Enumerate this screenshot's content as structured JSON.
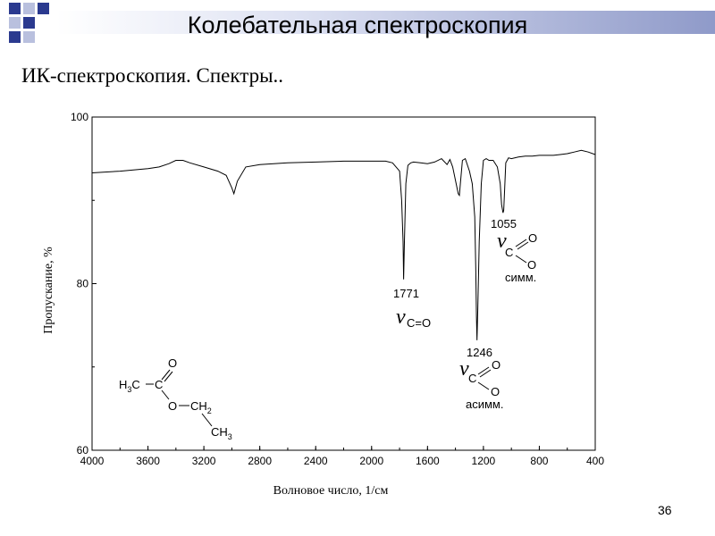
{
  "header": {
    "title": "Колебательная спектроскопия",
    "accent_color": "#2b3a8f"
  },
  "subtitle": "ИК-спектроскопия. Спектры..",
  "page_number": "36",
  "chart_data": {
    "type": "line",
    "xlabel": "Волновое число, 1/см",
    "ylabel": "Пропускание, %",
    "xlim": [
      4000,
      400
    ],
    "ylim": [
      60,
      100
    ],
    "x_ticks": [
      "4000",
      "3600",
      "3200",
      "2800",
      "2400",
      "2000",
      "1600",
      "1200",
      "800",
      "400"
    ],
    "y_ticks": [
      "100",
      "80",
      "60"
    ],
    "grid": false,
    "series": [
      {
        "x": [
          4000,
          3800,
          3600,
          3520,
          3450,
          3400,
          3350,
          3300,
          3200,
          3100,
          3040,
          3000,
          2985,
          2960,
          2900,
          2800,
          2600,
          2400,
          2200,
          2000,
          1900,
          1850,
          1800,
          1785,
          1775,
          1771,
          1765,
          1755,
          1740,
          1720,
          1700,
          1650,
          1600,
          1550,
          1500,
          1460,
          1440,
          1420,
          1380,
          1372,
          1365,
          1350,
          1330,
          1300,
          1280,
          1262,
          1255,
          1250,
          1246,
          1240,
          1230,
          1215,
          1200,
          1180,
          1160,
          1130,
          1100,
          1080,
          1070,
          1060,
          1055,
          1048,
          1040,
          1020,
          1000,
          950,
          900,
          850,
          800,
          750,
          700,
          650,
          600,
          550,
          500,
          450,
          400
        ],
        "values": [
          93.3,
          93.5,
          93.8,
          94.0,
          94.4,
          94.8,
          94.8,
          94.5,
          94.0,
          93.5,
          93.0,
          91.5,
          90.8,
          92.3,
          94.0,
          94.3,
          94.5,
          94.6,
          94.7,
          94.7,
          94.7,
          94.5,
          93.5,
          90.0,
          85.0,
          80.5,
          85.0,
          92.0,
          94.2,
          94.5,
          94.6,
          94.5,
          94.4,
          94.6,
          95.0,
          94.3,
          94.9,
          94.0,
          90.8,
          90.6,
          92.0,
          94.8,
          95.0,
          93.5,
          92.0,
          88.0,
          82.0,
          76.0,
          73.2,
          77.0,
          85.0,
          92.0,
          94.8,
          95.0,
          94.8,
          94.8,
          94.0,
          92.0,
          89.5,
          88.5,
          88.8,
          91.5,
          94.5,
          95.1,
          95.0,
          95.2,
          95.3,
          95.3,
          95.4,
          95.4,
          95.4,
          95.5,
          95.6,
          95.8,
          96.0,
          95.8,
          95.5
        ]
      }
    ],
    "annotations": {
      "peak_1771": "1771",
      "peak_1246": "1246",
      "peak_1055": "1055",
      "nu": "ν",
      "co_label": "C=O",
      "c_label": "C",
      "o_label": "O",
      "asym_label": "асимм.",
      "sym_label": "симм."
    },
    "structure": {
      "h3c": "H",
      "h3c_sub": "3",
      "h3c_c": "C",
      "c": "C",
      "o_top": "O",
      "o_ester": "O",
      "ch2": "CH",
      "ch2_sub": "2",
      "ch3": "CH",
      "ch3_sub": "3"
    }
  }
}
